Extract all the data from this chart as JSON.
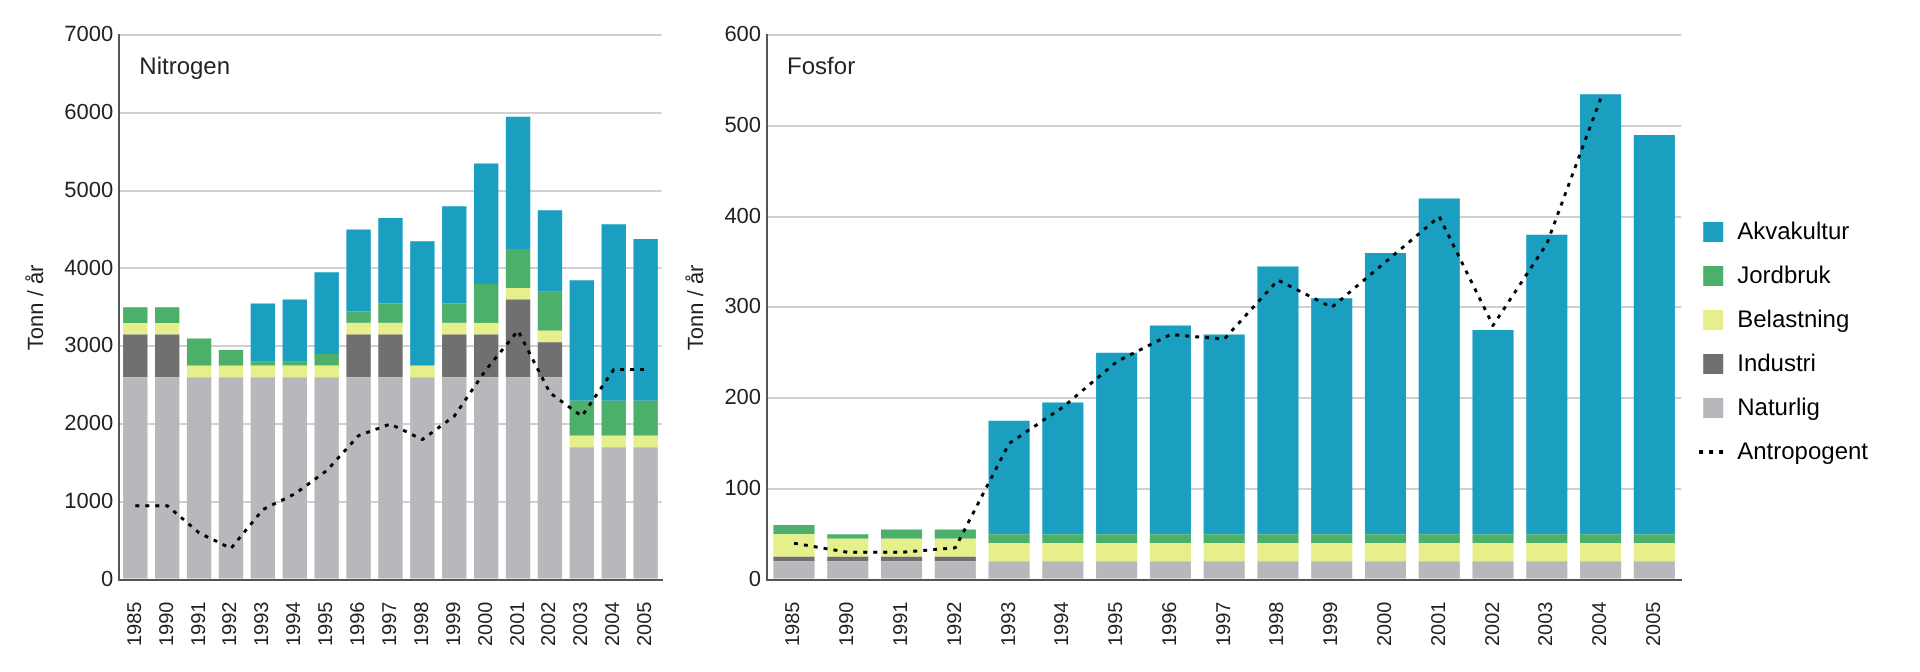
{
  "chart_data": [
    {
      "type": "bar",
      "stacked": true,
      "title": "Nitrogen",
      "ylabel": "Tonn / år",
      "categories": [
        "1985",
        "1990",
        "1991",
        "1992",
        "1993",
        "1994",
        "1995",
        "1996",
        "1997",
        "1998",
        "1999",
        "2000",
        "2001",
        "2002",
        "2003",
        "2004",
        "2005"
      ],
      "ylim": [
        0,
        7000
      ],
      "yticks": [
        0,
        1000,
        2000,
        3000,
        4000,
        5000,
        6000,
        7000
      ],
      "grid": "y",
      "legend": false,
      "series": [
        {
          "color": "#b8b8bc",
          "values": [
            2600,
            2600,
            2600,
            2600,
            2600,
            2600,
            2600,
            2600,
            2600,
            2600,
            2600,
            2600,
            2600,
            2600,
            1700,
            1700,
            1700
          ]
        },
        {
          "color": "#707070",
          "values": [
            550,
            550,
            0,
            0,
            0,
            0,
            0,
            550,
            550,
            0,
            550,
            550,
            1000,
            450,
            0,
            0,
            0
          ]
        },
        {
          "color": "#e6ef8a",
          "values": [
            150,
            150,
            150,
            150,
            150,
            150,
            150,
            150,
            150,
            150,
            150,
            150,
            150,
            150,
            150,
            150,
            150
          ]
        },
        {
          "color": "#4caf6a",
          "values": [
            200,
            200,
            350,
            200,
            50,
            50,
            150,
            150,
            250,
            0,
            250,
            500,
            500,
            500,
            450,
            450,
            450
          ]
        },
        {
          "color": "#1a9fc0",
          "values": [
            0,
            0,
            0,
            0,
            750,
            800,
            1050,
            1050,
            1100,
            1600,
            1250,
            1550,
            1700,
            1050,
            1550,
            2270,
            2080
          ]
        },
        {
          "type": "line",
          "color": "#000000",
          "line_style": "dotted",
          "marker": "none",
          "values": [
            950,
            950,
            600,
            400,
            900,
            1100,
            1400,
            1850,
            2000,
            1800,
            2100,
            2700,
            3200,
            2400,
            2100,
            2700,
            2700
          ]
        }
      ]
    },
    {
      "type": "bar",
      "stacked": true,
      "title": "Fosfor",
      "ylabel": "Tonn / år",
      "categories": [
        "1985",
        "1990",
        "1991",
        "1992",
        "1993",
        "1994",
        "1995",
        "1996",
        "1997",
        "1998",
        "1999",
        "2000",
        "2001",
        "2002",
        "2003",
        "2004",
        "2005"
      ],
      "ylim": [
        0,
        600
      ],
      "yticks": [
        0,
        100,
        200,
        300,
        400,
        500,
        600
      ],
      "grid": "y",
      "legend": "right",
      "series": [
        {
          "name": "Naturlig",
          "color": "#b8b8bc",
          "values": [
            20,
            20,
            20,
            20,
            20,
            20,
            20,
            20,
            20,
            20,
            20,
            20,
            20,
            20,
            20,
            20,
            20
          ]
        },
        {
          "name": "Industri",
          "color": "#707070",
          "values": [
            5,
            5,
            5,
            5,
            0,
            0,
            0,
            0,
            0,
            0,
            0,
            0,
            0,
            0,
            0,
            0,
            0
          ]
        },
        {
          "name": "Belastning",
          "color": "#e6ef8a",
          "values": [
            25,
            20,
            20,
            20,
            20,
            20,
            20,
            20,
            20,
            20,
            20,
            20,
            20,
            20,
            20,
            20,
            20
          ]
        },
        {
          "name": "Jordbruk",
          "color": "#4caf6a",
          "values": [
            10,
            5,
            10,
            10,
            10,
            10,
            10,
            10,
            10,
            10,
            10,
            10,
            10,
            10,
            10,
            10,
            10
          ]
        },
        {
          "name": "Akvakultur",
          "color": "#1a9fc0",
          "values": [
            0,
            0,
            0,
            0,
            125,
            145,
            200,
            230,
            220,
            295,
            260,
            310,
            370,
            225,
            330,
            485,
            440
          ]
        },
        {
          "name": "Antropogent",
          "type": "line",
          "color": "#000000",
          "line_style": "dotted",
          "marker": "none",
          "values": [
            40,
            30,
            30,
            35,
            150,
            190,
            240,
            270,
            265,
            330,
            300,
            350,
            400,
            280,
            370,
            530,
            null
          ]
        }
      ]
    }
  ]
}
